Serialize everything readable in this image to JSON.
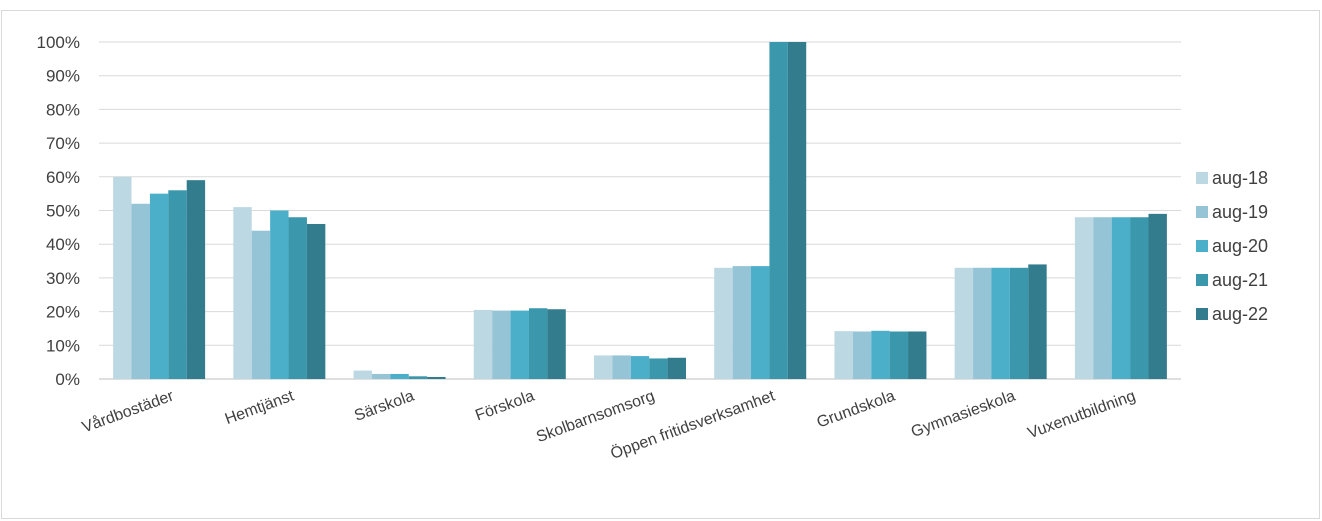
{
  "chart_data": {
    "type": "bar",
    "title": "",
    "xlabel": "",
    "ylabel": "",
    "ylim": [
      0,
      100
    ],
    "y_ticks": [
      "0%",
      "10%",
      "20%",
      "30%",
      "40%",
      "50%",
      "60%",
      "70%",
      "80%",
      "90%",
      "100%"
    ],
    "grid": true,
    "legend_position": "right",
    "categories": [
      "Vårdbostäder",
      "Hemtjänst",
      "Särskola",
      "Förskola",
      "Skolbarnsomsorg",
      "Öppen fritidsverksamhet",
      "Grundskola",
      "Gymnasieskola",
      "Vuxenutbildning"
    ],
    "series": [
      {
        "name": "aug-18",
        "color": "#bcd8e2",
        "values": [
          60,
          51,
          2.5,
          20.5,
          7,
          33,
          14.2,
          33,
          48
        ]
      },
      {
        "name": "aug-19",
        "color": "#95c4d6",
        "values": [
          52,
          44,
          1.5,
          20.3,
          7,
          33.5,
          14.1,
          33,
          48
        ]
      },
      {
        "name": "aug-20",
        "color": "#4bafc9",
        "values": [
          55,
          50,
          1.5,
          20.3,
          6.8,
          33.5,
          14.3,
          33,
          48
        ]
      },
      {
        "name": "aug-21",
        "color": "#3b98ac",
        "values": [
          56,
          48,
          0.8,
          21,
          6.1,
          100,
          14.1,
          33,
          48
        ]
      },
      {
        "name": "aug-22",
        "color": "#327c8e",
        "values": [
          59,
          46,
          0.6,
          20.7,
          6.3,
          100,
          14.1,
          34,
          49
        ]
      }
    ]
  }
}
